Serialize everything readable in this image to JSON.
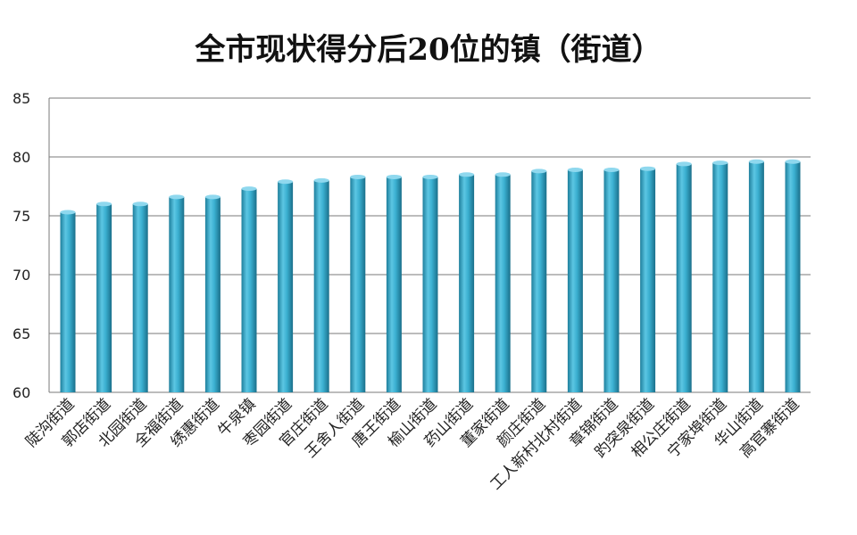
{
  "chart_data": {
    "type": "bar",
    "title": "全市现状得分后20位的镇（街道）",
    "xlabel": "",
    "ylabel": "",
    "ylim": [
      60,
      85
    ],
    "yticks": [
      60,
      65,
      70,
      75,
      80,
      85
    ],
    "grid": true,
    "legend": "none",
    "bar_color": "#2fa3c4",
    "categories": [
      "陡沟街道",
      "郭店街道",
      "北园街道",
      "全福街道",
      "绣惠街道",
      "牛泉镇",
      "枣园街道",
      "官庄街道",
      "王舍人街道",
      "唐王街道",
      "榆山街道",
      "药山街道",
      "董家街道",
      "颜庄街道",
      "工人新村北村街道",
      "章锦街道",
      "趵突泉街道",
      "相公庄街道",
      "宁家埠街道",
      "华山街道",
      "高官寨街道"
    ],
    "values": [
      75.3,
      76.0,
      76.0,
      76.6,
      76.6,
      77.3,
      77.9,
      78.0,
      78.3,
      78.3,
      78.3,
      78.5,
      78.5,
      78.8,
      78.9,
      78.9,
      79.0,
      79.4,
      79.5,
      79.6,
      79.6
    ]
  }
}
